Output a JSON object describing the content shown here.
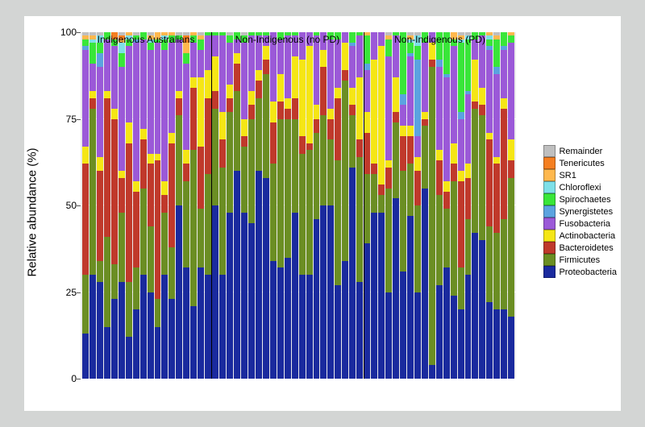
{
  "chart": {
    "type": "stacked-bar",
    "background_color": "#d3d5d4",
    "panel_color": "#ffffff",
    "plot_bg": "#ebebeb",
    "grid_color": "#ffffff",
    "ylabel": "Relative abundance (%)",
    "ylabel_fontsize": 15,
    "ylim": [
      0,
      100
    ],
    "yticks": [
      0,
      25,
      50,
      75,
      100
    ],
    "tick_fontsize": 12,
    "groups": [
      {
        "label": "Indigenous Australians",
        "start": 0,
        "end": 18
      },
      {
        "label": "Non-Indigenous (no PD)",
        "start": 18,
        "end": 39
      },
      {
        "label": "Non-Indigenous (PD)",
        "start": 39,
        "end": 60
      }
    ],
    "divider_color": "#000000",
    "legend": [
      {
        "label": "Remainder",
        "color": "#bfbfbf"
      },
      {
        "label": "Tenericutes",
        "color": "#f57f20"
      },
      {
        "label": "SR1",
        "color": "#ffb84d"
      },
      {
        "label": "Chloroflexi",
        "color": "#7ee0e8"
      },
      {
        "label": "Spirochaetes",
        "color": "#39e639"
      },
      {
        "label": "Synergistetes",
        "color": "#5ba3e0"
      },
      {
        "label": "Fusobacteria",
        "color": "#9b59d8"
      },
      {
        "label": "Actinobacteria",
        "color": "#f5e615"
      },
      {
        "label": "Bacteroidetes",
        "color": "#c0392b"
      },
      {
        "label": "Firmicutes",
        "color": "#6b8e23"
      },
      {
        "label": "Proteobacteria",
        "color": "#1a2a9e"
      }
    ],
    "bars": [
      {
        "Remainder": 1,
        "Tenericutes": 0,
        "SR1": 1,
        "Chloroflexi": 0,
        "Spirochaetes": 2,
        "Synergistetes": 1,
        "Fusobacteria": 28,
        "Actinobacteria": 5,
        "Bacteroidetes": 32,
        "Firmicutes": 17,
        "Proteobacteria": 13
      },
      {
        "Remainder": 1,
        "Tenericutes": 0,
        "SR1": 1,
        "Chloroflexi": 1,
        "Spirochaetes": 6,
        "Synergistetes": 0,
        "Fusobacteria": 8,
        "Actinobacteria": 2,
        "Bacteroidetes": 3,
        "Firmicutes": 48,
        "Proteobacteria": 30
      },
      {
        "Remainder": 1,
        "Tenericutes": 0,
        "SR1": 0,
        "Chloroflexi": 2,
        "Spirochaetes": 3,
        "Synergistetes": 4,
        "Fusobacteria": 26,
        "Actinobacteria": 4,
        "Bacteroidetes": 26,
        "Firmicutes": 6,
        "Proteobacteria": 28
      },
      {
        "Remainder": 0,
        "Tenericutes": 0,
        "SR1": 0,
        "Chloroflexi": 0,
        "Spirochaetes": 2,
        "Synergistetes": 0,
        "Fusobacteria": 15,
        "Actinobacteria": 2,
        "Bacteroidetes": 40,
        "Firmicutes": 26,
        "Proteobacteria": 15
      },
      {
        "Remainder": 0,
        "Tenericutes": 2,
        "SR1": 0,
        "Chloroflexi": 0,
        "Spirochaetes": 2,
        "Synergistetes": 0,
        "Fusobacteria": 18,
        "Actinobacteria": 3,
        "Bacteroidetes": 42,
        "Firmicutes": 10,
        "Proteobacteria": 23
      },
      {
        "Remainder": 1,
        "Tenericutes": 1,
        "SR1": 1,
        "Chloroflexi": 3,
        "Spirochaetes": 4,
        "Synergistetes": 0,
        "Fusobacteria": 30,
        "Actinobacteria": 2,
        "Bacteroidetes": 10,
        "Firmicutes": 20,
        "Proteobacteria": 28
      },
      {
        "Remainder": 0,
        "Tenericutes": 0,
        "SR1": 1,
        "Chloroflexi": 1,
        "Spirochaetes": 2,
        "Synergistetes": 0,
        "Fusobacteria": 22,
        "Actinobacteria": 6,
        "Bacteroidetes": 40,
        "Firmicutes": 16,
        "Proteobacteria": 12
      },
      {
        "Remainder": 1,
        "Tenericutes": 0,
        "SR1": 0,
        "Chloroflexi": 0,
        "Spirochaetes": 1,
        "Synergistetes": 1,
        "Fusobacteria": 40,
        "Actinobacteria": 3,
        "Bacteroidetes": 22,
        "Firmicutes": 12,
        "Proteobacteria": 20
      },
      {
        "Remainder": 0,
        "Tenericutes": 0,
        "SR1": 0,
        "Chloroflexi": 0,
        "Spirochaetes": 2,
        "Synergistetes": 0,
        "Fusobacteria": 26,
        "Actinobacteria": 3,
        "Bacteroidetes": 14,
        "Firmicutes": 25,
        "Proteobacteria": 30
      },
      {
        "Remainder": 1,
        "Tenericutes": 0,
        "SR1": 1,
        "Chloroflexi": 1,
        "Spirochaetes": 2,
        "Synergistetes": 0,
        "Fusobacteria": 30,
        "Actinobacteria": 3,
        "Bacteroidetes": 18,
        "Firmicutes": 19,
        "Proteobacteria": 25
      },
      {
        "Remainder": 0,
        "Tenericutes": 0,
        "SR1": 2,
        "Chloroflexi": 0,
        "Spirochaetes": 1,
        "Synergistetes": 0,
        "Fusobacteria": 32,
        "Actinobacteria": 2,
        "Bacteroidetes": 40,
        "Firmicutes": 8,
        "Proteobacteria": 15
      },
      {
        "Remainder": 0,
        "Tenericutes": 0,
        "SR1": 1,
        "Chloroflexi": 1,
        "Spirochaetes": 3,
        "Synergistetes": 0,
        "Fusobacteria": 38,
        "Actinobacteria": 4,
        "Bacteroidetes": 5,
        "Firmicutes": 18,
        "Proteobacteria": 30
      },
      {
        "Remainder": 0,
        "Tenericutes": 0,
        "SR1": 1,
        "Chloroflexi": 0,
        "Spirochaetes": 2,
        "Synergistetes": 0,
        "Fusobacteria": 26,
        "Actinobacteria": 3,
        "Bacteroidetes": 30,
        "Firmicutes": 15,
        "Proteobacteria": 23
      },
      {
        "Remainder": 1,
        "Tenericutes": 0,
        "SR1": 0,
        "Chloroflexi": 0,
        "Spirochaetes": 1,
        "Synergistetes": 0,
        "Fusobacteria": 15,
        "Actinobacteria": 2,
        "Bacteroidetes": 5,
        "Firmicutes": 26,
        "Proteobacteria": 50
      },
      {
        "Remainder": 1,
        "Tenericutes": 2,
        "SR1": 3,
        "Chloroflexi": 0,
        "Spirochaetes": 3,
        "Synergistetes": 0,
        "Fusobacteria": 25,
        "Actinobacteria": 4,
        "Bacteroidetes": 5,
        "Firmicutes": 25,
        "Proteobacteria": 32
      },
      {
        "Remainder": 0,
        "Tenericutes": 0,
        "SR1": 1,
        "Chloroflexi": 0,
        "Spirochaetes": 2,
        "Synergistetes": 0,
        "Fusobacteria": 10,
        "Actinobacteria": 3,
        "Bacteroidetes": 18,
        "Firmicutes": 45,
        "Proteobacteria": 21
      },
      {
        "Remainder": 1,
        "Tenericutes": 0,
        "SR1": 1,
        "Chloroflexi": 0,
        "Spirochaetes": 3,
        "Synergistetes": 0,
        "Fusobacteria": 8,
        "Actinobacteria": 20,
        "Bacteroidetes": 18,
        "Firmicutes": 17,
        "Proteobacteria": 32
      },
      {
        "Remainder": 0,
        "Tenericutes": 0,
        "SR1": 0,
        "Chloroflexi": 0,
        "Spirochaetes": 1,
        "Synergistetes": 0,
        "Fusobacteria": 10,
        "Actinobacteria": 8,
        "Bacteroidetes": 22,
        "Firmicutes": 29,
        "Proteobacteria": 30
      },
      {
        "Remainder": 0,
        "Tenericutes": 0,
        "SR1": 0,
        "Chloroflexi": 0,
        "Spirochaetes": 1,
        "Synergistetes": 0,
        "Fusobacteria": 6,
        "Actinobacteria": 10,
        "Bacteroidetes": 5,
        "Firmicutes": 28,
        "Proteobacteria": 50
      },
      {
        "Remainder": 0,
        "Tenericutes": 0,
        "SR1": 0,
        "Chloroflexi": 0,
        "Spirochaetes": 1,
        "Synergistetes": 0,
        "Fusobacteria": 22,
        "Actinobacteria": 8,
        "Bacteroidetes": 8,
        "Firmicutes": 31,
        "Proteobacteria": 30
      },
      {
        "Remainder": 1,
        "Tenericutes": 0,
        "SR1": 0,
        "Chloroflexi": 0,
        "Spirochaetes": 2,
        "Synergistetes": 0,
        "Fusobacteria": 12,
        "Actinobacteria": 4,
        "Bacteroidetes": 4,
        "Firmicutes": 29,
        "Proteobacteria": 48
      },
      {
        "Remainder": 0,
        "Tenericutes": 0,
        "SR1": 0,
        "Chloroflexi": 0,
        "Spirochaetes": 2,
        "Synergistetes": 0,
        "Fusobacteria": 4,
        "Actinobacteria": 3,
        "Bacteroidetes": 8,
        "Firmicutes": 23,
        "Proteobacteria": 60
      },
      {
        "Remainder": 1,
        "Tenericutes": 0,
        "SR1": 0,
        "Chloroflexi": 0,
        "Spirochaetes": 2,
        "Synergistetes": 0,
        "Fusobacteria": 22,
        "Actinobacteria": 5,
        "Bacteroidetes": 3,
        "Firmicutes": 19,
        "Proteobacteria": 48
      },
      {
        "Remainder": 0,
        "Tenericutes": 0,
        "SR1": 0,
        "Chloroflexi": 0,
        "Spirochaetes": 1,
        "Synergistetes": 0,
        "Fusobacteria": 16,
        "Actinobacteria": 4,
        "Bacteroidetes": 4,
        "Firmicutes": 30,
        "Proteobacteria": 45
      },
      {
        "Remainder": 0,
        "Tenericutes": 0,
        "SR1": 0,
        "Chloroflexi": 0,
        "Spirochaetes": 1,
        "Synergistetes": 0,
        "Fusobacteria": 10,
        "Actinobacteria": 3,
        "Bacteroidetes": 5,
        "Firmicutes": 21,
        "Proteobacteria": 60
      },
      {
        "Remainder": 0,
        "Tenericutes": 0,
        "SR1": 0,
        "Chloroflexi": 0,
        "Spirochaetes": 1,
        "Synergistetes": 0,
        "Fusobacteria": 3,
        "Actinobacteria": 4,
        "Bacteroidetes": 4,
        "Firmicutes": 30,
        "Proteobacteria": 58
      },
      {
        "Remainder": 0,
        "Tenericutes": 0,
        "SR1": 0,
        "Chloroflexi": 0,
        "Spirochaetes": 0,
        "Synergistetes": 0,
        "Fusobacteria": 20,
        "Actinobacteria": 6,
        "Bacteroidetes": 12,
        "Firmicutes": 28,
        "Proteobacteria": 34
      },
      {
        "Remainder": 0,
        "Tenericutes": 0,
        "SR1": 0,
        "Chloroflexi": 0,
        "Spirochaetes": 2,
        "Synergistetes": 0,
        "Fusobacteria": 10,
        "Actinobacteria": 8,
        "Bacteroidetes": 5,
        "Firmicutes": 43,
        "Proteobacteria": 32
      },
      {
        "Remainder": 0,
        "Tenericutes": 0,
        "SR1": 0,
        "Chloroflexi": 0,
        "Spirochaetes": 1,
        "Synergistetes": 0,
        "Fusobacteria": 18,
        "Actinobacteria": 3,
        "Bacteroidetes": 3,
        "Firmicutes": 40,
        "Proteobacteria": 35
      },
      {
        "Remainder": 0,
        "Tenericutes": 0,
        "SR1": 0,
        "Chloroflexi": 0,
        "Spirochaetes": 1,
        "Synergistetes": 0,
        "Fusobacteria": 6,
        "Actinobacteria": 12,
        "Bacteroidetes": 6,
        "Firmicutes": 27,
        "Proteobacteria": 48
      },
      {
        "Remainder": 0,
        "Tenericutes": 0,
        "SR1": 0,
        "Chloroflexi": 0,
        "Spirochaetes": 0,
        "Synergistetes": 0,
        "Fusobacteria": 8,
        "Actinobacteria": 22,
        "Bacteroidetes": 5,
        "Firmicutes": 35,
        "Proteobacteria": 30
      },
      {
        "Remainder": 0,
        "Tenericutes": 0,
        "SR1": 0,
        "Chloroflexi": 0,
        "Spirochaetes": 0,
        "Synergistetes": 0,
        "Fusobacteria": 4,
        "Actinobacteria": 28,
        "Bacteroidetes": 2,
        "Firmicutes": 36,
        "Proteobacteria": 30
      },
      {
        "Remainder": 0,
        "Tenericutes": 0,
        "SR1": 0,
        "Chloroflexi": 0,
        "Spirochaetes": 1,
        "Synergistetes": 0,
        "Fusobacteria": 20,
        "Actinobacteria": 4,
        "Bacteroidetes": 4,
        "Firmicutes": 25,
        "Proteobacteria": 46
      },
      {
        "Remainder": 0,
        "Tenericutes": 0,
        "SR1": 0,
        "Chloroflexi": 0,
        "Spirochaetes": 0,
        "Synergistetes": 0,
        "Fusobacteria": 5,
        "Actinobacteria": 5,
        "Bacteroidetes": 14,
        "Firmicutes": 26,
        "Proteobacteria": 50
      },
      {
        "Remainder": 0,
        "Tenericutes": 0,
        "SR1": 0,
        "Chloroflexi": 0,
        "Spirochaetes": 2,
        "Synergistetes": 0,
        "Fusobacteria": 20,
        "Actinobacteria": 3,
        "Bacteroidetes": 6,
        "Firmicutes": 19,
        "Proteobacteria": 50
      },
      {
        "Remainder": 0,
        "Tenericutes": 0,
        "SR1": 0,
        "Chloroflexi": 0,
        "Spirochaetes": 2,
        "Synergistetes": 0,
        "Fusobacteria": 14,
        "Actinobacteria": 3,
        "Bacteroidetes": 18,
        "Firmicutes": 36,
        "Proteobacteria": 27
      },
      {
        "Remainder": 0,
        "Tenericutes": 0,
        "SR1": 0,
        "Chloroflexi": 0,
        "Spirochaetes": 0,
        "Synergistetes": 0,
        "Fusobacteria": 3,
        "Actinobacteria": 8,
        "Bacteroidetes": 3,
        "Firmicutes": 52,
        "Proteobacteria": 34
      },
      {
        "Remainder": 0,
        "Tenericutes": 0,
        "SR1": 0,
        "Chloroflexi": 0,
        "Spirochaetes": 3,
        "Synergistetes": 1,
        "Fusobacteria": 12,
        "Actinobacteria": 5,
        "Bacteroidetes": 3,
        "Firmicutes": 15,
        "Proteobacteria": 61
      },
      {
        "Remainder": 0,
        "Tenericutes": 0,
        "SR1": 0,
        "Chloroflexi": 0,
        "Spirochaetes": 1,
        "Synergistetes": 0,
        "Fusobacteria": 12,
        "Actinobacteria": 18,
        "Bacteroidetes": 5,
        "Firmicutes": 36,
        "Proteobacteria": 28
      },
      {
        "Remainder": 0,
        "Tenericutes": 0,
        "SR1": 1,
        "Chloroflexi": 0,
        "Spirochaetes": 8,
        "Synergistetes": 2,
        "Fusobacteria": 12,
        "Actinobacteria": 6,
        "Bacteroidetes": 12,
        "Firmicutes": 20,
        "Proteobacteria": 39
      },
      {
        "Remainder": 0,
        "Tenericutes": 0,
        "SR1": 0,
        "Chloroflexi": 0,
        "Spirochaetes": 0,
        "Synergistetes": 0,
        "Fusobacteria": 8,
        "Actinobacteria": 30,
        "Bacteroidetes": 3,
        "Firmicutes": 11,
        "Proteobacteria": 48
      },
      {
        "Remainder": 0,
        "Tenericutes": 0,
        "SR1": 0,
        "Chloroflexi": 0,
        "Spirochaetes": 0,
        "Synergistetes": 0,
        "Fusobacteria": 4,
        "Actinobacteria": 40,
        "Bacteroidetes": 3,
        "Firmicutes": 5,
        "Proteobacteria": 48
      },
      {
        "Remainder": 1,
        "Tenericutes": 0,
        "SR1": 1,
        "Chloroflexi": 0,
        "Spirochaetes": 5,
        "Synergistetes": 0,
        "Fusobacteria": 30,
        "Actinobacteria": 2,
        "Bacteroidetes": 6,
        "Firmicutes": 30,
        "Proteobacteria": 25
      },
      {
        "Remainder": 0,
        "Tenericutes": 0,
        "SR1": 0,
        "Chloroflexi": 0,
        "Spirochaetes": 1,
        "Synergistetes": 0,
        "Fusobacteria": 12,
        "Actinobacteria": 10,
        "Bacteroidetes": 3,
        "Firmicutes": 22,
        "Proteobacteria": 52
      },
      {
        "Remainder": 0,
        "Tenericutes": 0,
        "SR1": 0,
        "Chloroflexi": 0,
        "Spirochaetes": 18,
        "Synergistetes": 3,
        "Fusobacteria": 6,
        "Actinobacteria": 3,
        "Bacteroidetes": 10,
        "Firmicutes": 29,
        "Proteobacteria": 31
      },
      {
        "Remainder": 1,
        "Tenericutes": 0,
        "SR1": 1,
        "Chloroflexi": 1,
        "Spirochaetes": 3,
        "Synergistetes": 1,
        "Fusobacteria": 20,
        "Actinobacteria": 3,
        "Bacteroidetes": 8,
        "Firmicutes": 15,
        "Proteobacteria": 47
      },
      {
        "Remainder": 1,
        "Tenericutes": 0,
        "SR1": 0,
        "Chloroflexi": 3,
        "Spirochaetes": 4,
        "Synergistetes": 22,
        "Fusobacteria": 6,
        "Actinobacteria": 4,
        "Bacteroidetes": 10,
        "Firmicutes": 25,
        "Proteobacteria": 25
      },
      {
        "Remainder": 0,
        "Tenericutes": 0,
        "SR1": 0,
        "Chloroflexi": 0,
        "Spirochaetes": 3,
        "Synergistetes": 0,
        "Fusobacteria": 20,
        "Actinobacteria": 2,
        "Bacteroidetes": 2,
        "Firmicutes": 18,
        "Proteobacteria": 55
      },
      {
        "Remainder": 0,
        "Tenericutes": 0,
        "SR1": 0,
        "Chloroflexi": 0,
        "Spirochaetes": 0,
        "Synergistetes": 0,
        "Fusobacteria": 3,
        "Actinobacteria": 5,
        "Bacteroidetes": 2,
        "Firmicutes": 86,
        "Proteobacteria": 4
      },
      {
        "Remainder": 0,
        "Tenericutes": 0,
        "SR1": 0,
        "Chloroflexi": 0,
        "Spirochaetes": 8,
        "Synergistetes": 2,
        "Fusobacteria": 24,
        "Actinobacteria": 3,
        "Bacteroidetes": 10,
        "Firmicutes": 26,
        "Proteobacteria": 27
      },
      {
        "Remainder": 0,
        "Tenericutes": 0,
        "SR1": 0,
        "Chloroflexi": 0,
        "Spirochaetes": 12,
        "Synergistetes": 1,
        "Fusobacteria": 30,
        "Actinobacteria": 3,
        "Bacteroidetes": 5,
        "Firmicutes": 17,
        "Proteobacteria": 32
      },
      {
        "Remainder": 0,
        "Tenericutes": 0,
        "SR1": 2,
        "Chloroflexi": 0,
        "Spirochaetes": 2,
        "Synergistetes": 0,
        "Fusobacteria": 28,
        "Actinobacteria": 6,
        "Bacteroidetes": 5,
        "Firmicutes": 33,
        "Proteobacteria": 24
      },
      {
        "Remainder": 1,
        "Tenericutes": 0,
        "SR1": 1,
        "Chloroflexi": 1,
        "Spirochaetes": 20,
        "Synergistetes": 2,
        "Fusobacteria": 15,
        "Actinobacteria": 3,
        "Bacteroidetes": 25,
        "Firmicutes": 12,
        "Proteobacteria": 20
      },
      {
        "Remainder": 1,
        "Tenericutes": 0,
        "SR1": 0,
        "Chloroflexi": 1,
        "Spirochaetes": 15,
        "Synergistetes": 1,
        "Fusobacteria": 20,
        "Actinobacteria": 4,
        "Bacteroidetes": 12,
        "Firmicutes": 16,
        "Proteobacteria": 30
      },
      {
        "Remainder": 0,
        "Tenericutes": 0,
        "SR1": 0,
        "Chloroflexi": 0,
        "Spirochaetes": 2,
        "Synergistetes": 0,
        "Fusobacteria": 6,
        "Actinobacteria": 12,
        "Bacteroidetes": 2,
        "Firmicutes": 36,
        "Proteobacteria": 42
      },
      {
        "Remainder": 0,
        "Tenericutes": 0,
        "SR1": 0,
        "Chloroflexi": 0,
        "Spirochaetes": 1,
        "Synergistetes": 0,
        "Fusobacteria": 15,
        "Actinobacteria": 5,
        "Bacteroidetes": 3,
        "Firmicutes": 36,
        "Proteobacteria": 40
      },
      {
        "Remainder": 0,
        "Tenericutes": 0,
        "SR1": 1,
        "Chloroflexi": 1,
        "Spirochaetes": 2,
        "Synergistetes": 1,
        "Fusobacteria": 24,
        "Actinobacteria": 2,
        "Bacteroidetes": 25,
        "Firmicutes": 22,
        "Proteobacteria": 22
      },
      {
        "Remainder": 1,
        "Tenericutes": 0,
        "SR1": 1,
        "Chloroflexi": 0,
        "Spirochaetes": 8,
        "Synergistetes": 2,
        "Fusobacteria": 24,
        "Actinobacteria": 2,
        "Bacteroidetes": 20,
        "Firmicutes": 22,
        "Proteobacteria": 20
      },
      {
        "Remainder": 0,
        "Tenericutes": 0,
        "SR1": 0,
        "Chloroflexi": 0,
        "Spirochaetes": 4,
        "Synergistetes": 1,
        "Fusobacteria": 14,
        "Actinobacteria": 3,
        "Bacteroidetes": 32,
        "Firmicutes": 26,
        "Proteobacteria": 20
      },
      {
        "Remainder": 0,
        "Tenericutes": 0,
        "SR1": 1,
        "Chloroflexi": 0,
        "Spirochaetes": 2,
        "Synergistetes": 0,
        "Fusobacteria": 28,
        "Actinobacteria": 6,
        "Bacteroidetes": 5,
        "Firmicutes": 40,
        "Proteobacteria": 18
      }
    ]
  }
}
